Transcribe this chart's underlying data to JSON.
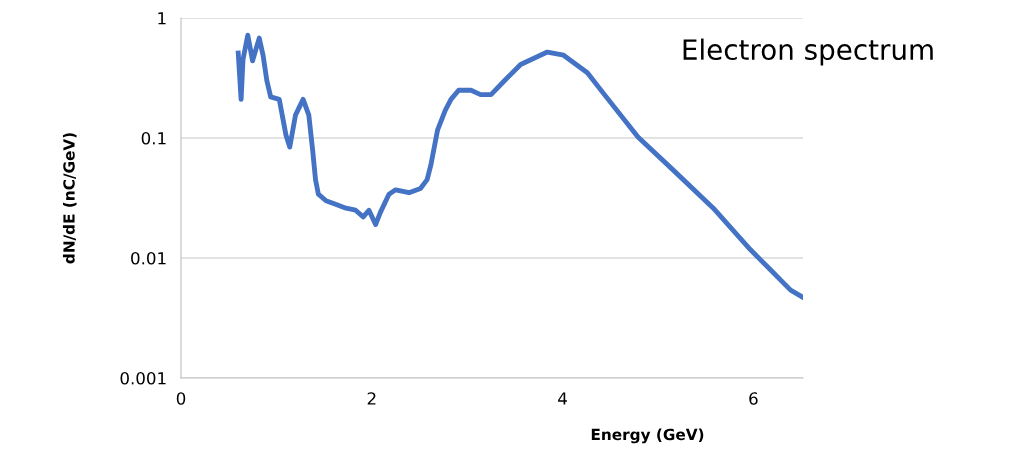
{
  "chart_data": {
    "type": "line",
    "title": "Electron spectrum",
    "xlabel": "Energy (GeV)",
    "ylabel": "dN/dE (nC/GeV)",
    "x": [
      0.6,
      0.63,
      0.65,
      0.7,
      0.75,
      0.82,
      0.86,
      0.9,
      0.94,
      1.03,
      1.1,
      1.14,
      1.2,
      1.28,
      1.34,
      1.38,
      1.41,
      1.44,
      1.52,
      1.62,
      1.73,
      1.83,
      1.91,
      1.97,
      2.04,
      2.09,
      2.18,
      2.25,
      2.39,
      2.51,
      2.58,
      2.62,
      2.69,
      2.77,
      2.83,
      2.91,
      3.04,
      3.14,
      3.25,
      3.39,
      3.56,
      3.84,
      4.01,
      4.26,
      4.42,
      4.79,
      5.16,
      5.58,
      5.97,
      6.15,
      6.39,
      6.52
    ],
    "series": [
      {
        "color": "#4472c4",
        "values": [
          0.51,
          0.21,
          0.45,
          0.72,
          0.44,
          0.68,
          0.49,
          0.3,
          0.22,
          0.21,
          0.106,
          0.084,
          0.155,
          0.21,
          0.155,
          0.079,
          0.045,
          0.034,
          0.03,
          0.028,
          0.026,
          0.025,
          0.022,
          0.025,
          0.019,
          0.024,
          0.034,
          0.037,
          0.035,
          0.038,
          0.045,
          0.06,
          0.117,
          0.17,
          0.21,
          0.25,
          0.25,
          0.23,
          0.23,
          0.3,
          0.41,
          0.52,
          0.49,
          0.35,
          0.24,
          0.102,
          0.054,
          0.026,
          0.0117,
          0.0084,
          0.0054,
          0.0047
        ]
      }
    ],
    "log": "y",
    "xlim": [
      0,
      6.52
    ],
    "ylim": [
      0.001,
      1
    ],
    "xticks": [
      0,
      2,
      4,
      6
    ],
    "yticks": [
      0.001,
      0.01,
      0.1,
      1
    ],
    "grid": "y",
    "marker": "none",
    "line_style": "solid"
  }
}
